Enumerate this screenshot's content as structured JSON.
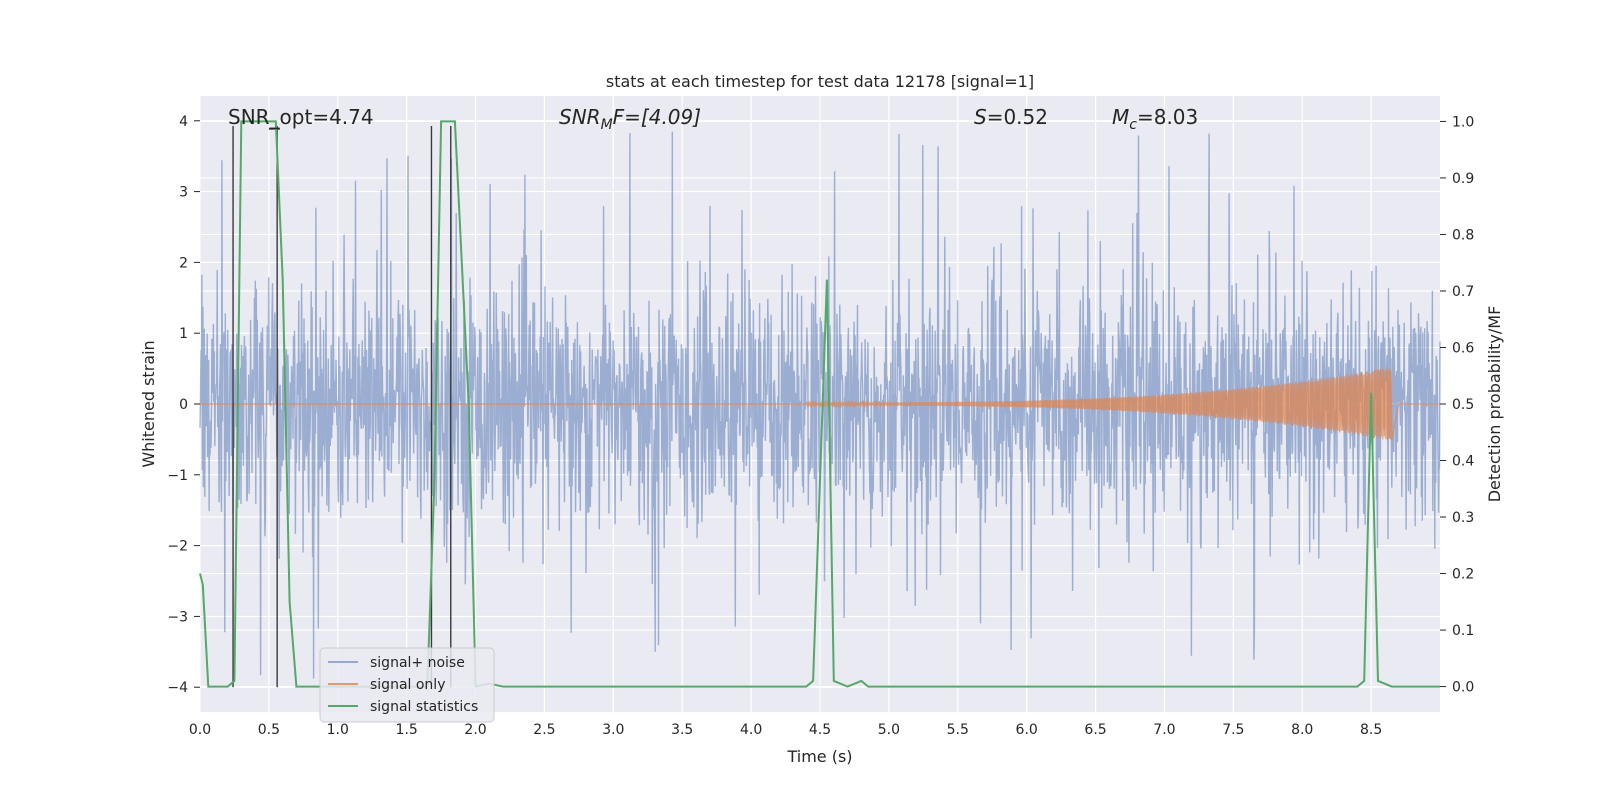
{
  "chart_data": {
    "type": "line",
    "title": "stats at each timestep for test data 12178 [signal=1]",
    "xlabel": "Time (s)",
    "ylabel_left": "Whitened strain",
    "ylabel_right": "Detection probability/MF",
    "xlim": [
      0.0,
      9.0
    ],
    "ylim_left": [
      -4.35,
      4.35
    ],
    "ylim_right": [
      -0.045,
      1.045
    ],
    "x_ticks": [
      0.0,
      0.5,
      1.0,
      1.5,
      2.0,
      2.5,
      3.0,
      3.5,
      4.0,
      4.5,
      5.0,
      5.5,
      6.0,
      6.5,
      7.0,
      7.5,
      8.0,
      8.5
    ],
    "x_tick_labels": [
      "0.0",
      "0.5",
      "1.0",
      "1.5",
      "2.0",
      "2.5",
      "3.0",
      "3.5",
      "4.0",
      "4.5",
      "5.0",
      "5.5",
      "6.0",
      "6.5",
      "7.0",
      "7.5",
      "8.0",
      "8.5"
    ],
    "y_left_ticks": [
      4,
      3,
      2,
      1,
      0,
      -1,
      -2,
      -3,
      -4
    ],
    "y_left_tick_labels": [
      "4",
      "3",
      "2",
      "1",
      "0",
      "−1",
      "−2",
      "−3",
      "−4"
    ],
    "y_right_ticks": [
      1.0,
      0.9,
      0.8,
      0.7,
      0.6,
      0.5,
      0.4,
      0.3,
      0.2,
      0.1,
      0.0
    ],
    "y_right_tick_labels": [
      "1.0",
      "0.9",
      "0.8",
      "0.7",
      "0.6",
      "0.5",
      "0.4",
      "0.3",
      "0.2",
      "0.1",
      "0.0"
    ],
    "annotations": {
      "snr_opt": "SNR_opt=4.74",
      "snr_mf_sym": "SNR",
      "snr_mf_sub": "M",
      "snr_mf_rest": "F=[4.09]",
      "s_sym": "S",
      "s_rest": "=0.52",
      "mc_sym": "M",
      "mc_sub": "c",
      "mc_rest": "=8.03"
    },
    "legend": {
      "placement": "lower-left",
      "entries": [
        "signal+ noise",
        "signal only",
        "signal statistics"
      ]
    },
    "colors": {
      "noise": "#4c72b0",
      "signal": "#dd8452",
      "stats": "#55a868",
      "background": "#eaeaf2",
      "grid": "#ffffff",
      "marker": "#3a3a3a"
    },
    "series": [
      {
        "name": "signal+ noise",
        "description": "whitened strain noise, approx. gaussian, amplitude mostly within ±2.5",
        "envelope_typical": 2.2,
        "max_peak": 3.9
      },
      {
        "name": "signal only",
        "description": "chirp signal growing in amplitude until merger",
        "start_time": 4.4,
        "merger_time": 8.65,
        "amplitude_start": 0.02,
        "amplitude_peak": 0.5
      },
      {
        "name": "signal statistics",
        "axis": "right",
        "x": [
          0.0,
          0.02,
          0.06,
          0.2,
          0.25,
          0.3,
          0.55,
          0.6,
          0.65,
          0.7,
          0.8,
          1.0,
          1.5,
          1.65,
          1.7,
          1.75,
          1.85,
          1.95,
          2.0,
          2.1,
          2.2,
          4.4,
          4.45,
          4.55,
          4.6,
          4.7,
          4.8,
          4.85,
          4.9,
          5.5,
          6.0,
          7.0,
          7.5,
          8.0,
          8.4,
          8.45,
          8.5,
          8.55,
          8.65,
          9.0
        ],
        "y": [
          0.2,
          0.18,
          0.0,
          0.0,
          0.01,
          1.0,
          1.0,
          0.72,
          0.15,
          0.0,
          0.0,
          0.0,
          0.0,
          0.0,
          0.35,
          1.0,
          1.0,
          0.5,
          0.0,
          0.005,
          0.0,
          0.0,
          0.01,
          0.72,
          0.01,
          0.0,
          0.01,
          0.0,
          0.0,
          0.0,
          0.0,
          0.0,
          0.0,
          0.0,
          0.0,
          0.01,
          0.52,
          0.01,
          0.0,
          0.0
        ]
      }
    ],
    "vertical_markers": [
      0.24,
      0.56,
      1.68,
      1.82
    ]
  }
}
